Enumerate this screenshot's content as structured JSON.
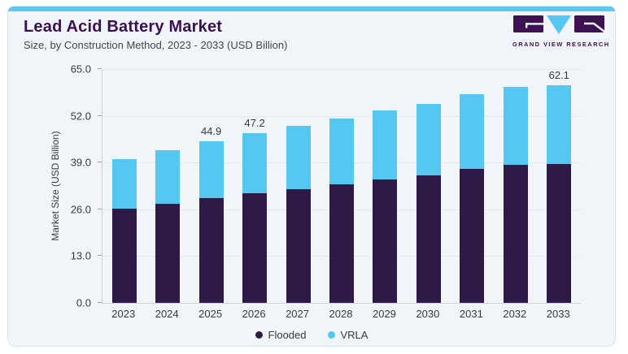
{
  "header": {
    "title": "Lead Acid Battery Market",
    "subtitle": "Size, by Construction Method, 2023 - 2033 (USD Billion)",
    "logo_text": "GRAND VIEW RESEARCH"
  },
  "colors": {
    "flooded": "#2e1a47",
    "vrla": "#56c7f0",
    "accent_bar": "#5ec8f1",
    "title_purple": "#3b1053",
    "logo_purple": "#3d1152",
    "card_background": "#eff5f9"
  },
  "chart_data": {
    "type": "bar",
    "stacked": true,
    "title": "Lead Acid Battery Market",
    "subtitle": "Size, by Construction Method, 2023 - 2033 (USD Billion)",
    "xlabel": "",
    "ylabel": "Market Size (USD Billion)",
    "ylim": [
      0,
      65
    ],
    "yticks": [
      0.0,
      13.0,
      26.0,
      39.0,
      52.0,
      65.0
    ],
    "ytick_labels": [
      "0.0",
      "13.0",
      "26.0",
      "39.0",
      "52.0",
      "65.0"
    ],
    "grid": true,
    "legend_position": "bottom",
    "categories": [
      "2023",
      "2024",
      "2025",
      "2026",
      "2027",
      "2028",
      "2029",
      "2030",
      "2031",
      "2032",
      "2033"
    ],
    "series": [
      {
        "name": "Flooded",
        "color": "#2e1a47",
        "values": [
          26.2,
          27.5,
          29.2,
          30.5,
          31.7,
          33.0,
          34.4,
          35.5,
          37.2,
          38.4,
          39.6
        ]
      },
      {
        "name": "VRLA",
        "color": "#56c7f0",
        "values": [
          13.8,
          14.9,
          15.7,
          16.7,
          17.5,
          18.2,
          19.0,
          19.8,
          20.7,
          21.7,
          22.5
        ]
      }
    ],
    "totals": [
      40.0,
      42.4,
      44.9,
      47.2,
      49.2,
      51.2,
      53.4,
      55.3,
      57.9,
      60.1,
      62.1
    ],
    "data_labels": [
      "",
      "",
      "44.9",
      "47.2",
      "",
      "",
      "",
      "",
      "",
      "",
      "62.1"
    ]
  }
}
